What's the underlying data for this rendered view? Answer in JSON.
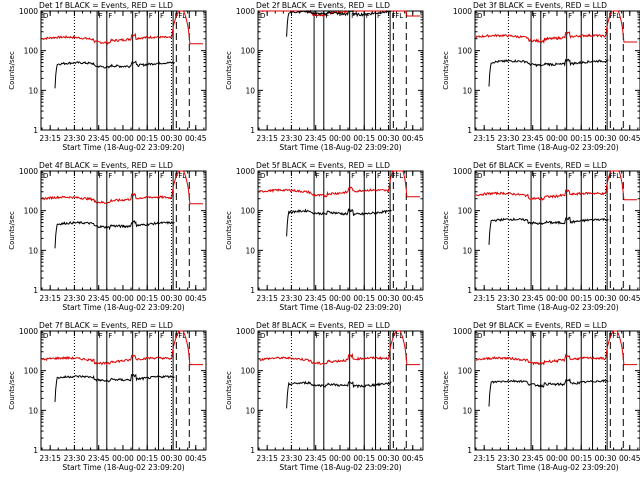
{
  "chart_data": {
    "shared": {
      "type": "line",
      "title_suffix": " BLACK = Events, RED = LLD",
      "ylabel": "Counts/sec",
      "xlabel": "Start Time (18-Aug-02 23:09:20)",
      "y_scale": "log",
      "ylim": [
        1,
        1000
      ],
      "y_ticks": [
        1,
        10,
        100,
        1000
      ],
      "x_range_minutes": [
        "23:09:20",
        "00:51:20"
      ],
      "x_ticks": [
        "23:15",
        "23:30",
        "23:45",
        "00:00",
        "00:15",
        "00:30",
        "00:45"
      ],
      "y_axis_tick_labels": [
        "1",
        "10",
        "100",
        "1000"
      ],
      "dotted_markers": [
        "23:30",
        "00:30"
      ],
      "dashed_markers": [
        "00:33",
        "00:41"
      ],
      "region_markers": [
        {
          "label": "F",
          "time": "23:44"
        },
        {
          "label": "F",
          "time": "23:50"
        },
        {
          "label": "F",
          "time": "00:06"
        },
        {
          "label": "F",
          "time": "00:15"
        },
        {
          "label": "F",
          "time": "00:22"
        },
        {
          "label": "F",
          "time": "00:31"
        }
      ],
      "flare_label": "FL",
      "flare_time": "00:36",
      "corner_label": "D",
      "series_colors": {
        "events": "#000000",
        "lld": "#dd0000"
      }
    },
    "panels": [
      {
        "title_prefix": "Det 1f",
        "events_level": 45,
        "lld_level": 200,
        "events_start": "23:18"
      },
      {
        "title_prefix": "Det 2f",
        "events_level": 900,
        "lld_level": 1000,
        "events_start": "23:27"
      },
      {
        "title_prefix": "Det 3f",
        "events_level": 50,
        "lld_level": 220,
        "events_start": "23:18"
      },
      {
        "title_prefix": "Det 4f",
        "events_level": 45,
        "lld_level": 200,
        "events_start": "23:18"
      },
      {
        "title_prefix": "Det 5f",
        "events_level": 90,
        "lld_level": 300,
        "events_start": "23:27"
      },
      {
        "title_prefix": "Det 6f",
        "events_level": 55,
        "lld_level": 250,
        "events_start": "23:18"
      },
      {
        "title_prefix": "Det 7f",
        "events_level": 65,
        "lld_level": 190,
        "events_start": "23:18"
      },
      {
        "title_prefix": "Det 8f",
        "events_level": 45,
        "lld_level": 190,
        "events_start": "23:27"
      },
      {
        "title_prefix": "Det 9f",
        "events_level": 50,
        "lld_level": 190,
        "events_start": "23:18"
      }
    ]
  }
}
